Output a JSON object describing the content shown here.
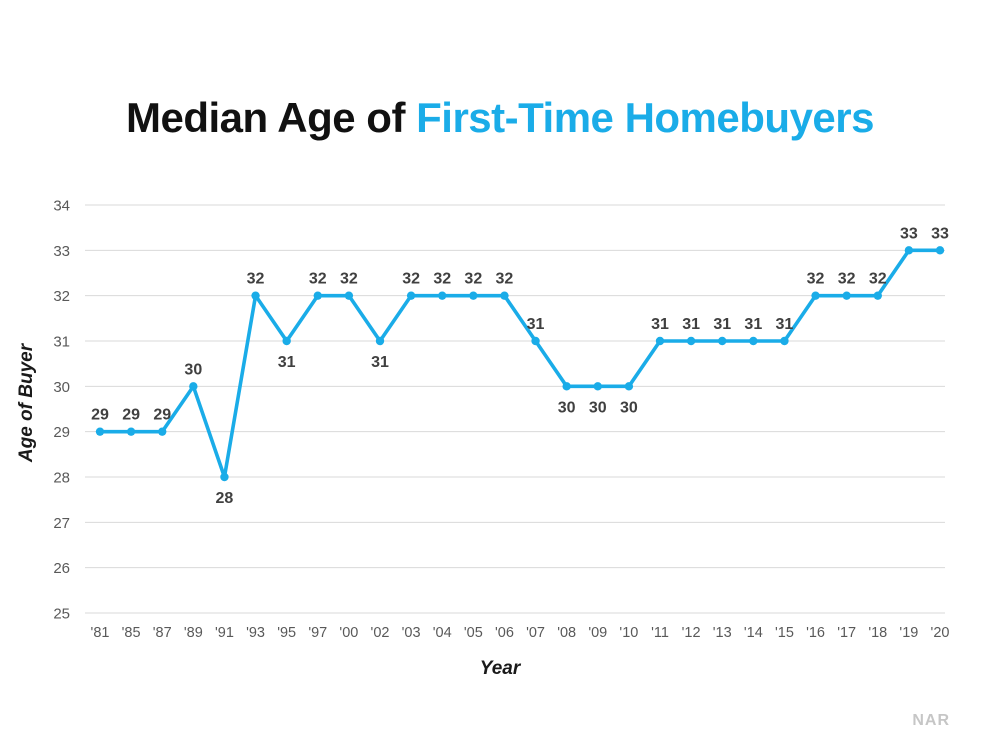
{
  "title": {
    "prefix": "Median Age of ",
    "highlight": "First-Time Homebuyers"
  },
  "watermark": "NAR",
  "colors": {
    "line": "#1AACE8",
    "marker": "#1AACE8",
    "title_highlight": "#1AACE8",
    "gridline": "#D9D9D9",
    "tick_label": "#595959",
    "data_label": "#404040"
  },
  "chart_data": {
    "type": "line",
    "title": "Median Age of First-Time Homebuyers",
    "xlabel": "Year",
    "ylabel": "Age of Buyer",
    "categories": [
      "'81",
      "'85",
      "'87",
      "'89",
      "'91",
      "'93",
      "'95",
      "'97",
      "'00",
      "'02",
      "'03",
      "'04",
      "'05",
      "'06",
      "'07",
      "'08",
      "'09",
      "'10",
      "'11",
      "'12",
      "'13",
      "'14",
      "'15",
      "'16",
      "'17",
      "'18",
      "'19",
      "'20"
    ],
    "values": [
      29,
      29,
      29,
      30,
      28,
      32,
      31,
      32,
      32,
      31,
      32,
      32,
      32,
      32,
      31,
      30,
      30,
      30,
      31,
      31,
      31,
      31,
      31,
      32,
      32,
      32,
      33,
      33
    ],
    "ylim": [
      25,
      34
    ],
    "yticks": [
      25,
      26,
      27,
      28,
      29,
      30,
      31,
      32,
      33,
      34
    ],
    "grid": true,
    "legend": false,
    "data_labels": true,
    "label_below_indices": [
      4,
      6,
      9,
      15,
      16,
      17
    ]
  }
}
